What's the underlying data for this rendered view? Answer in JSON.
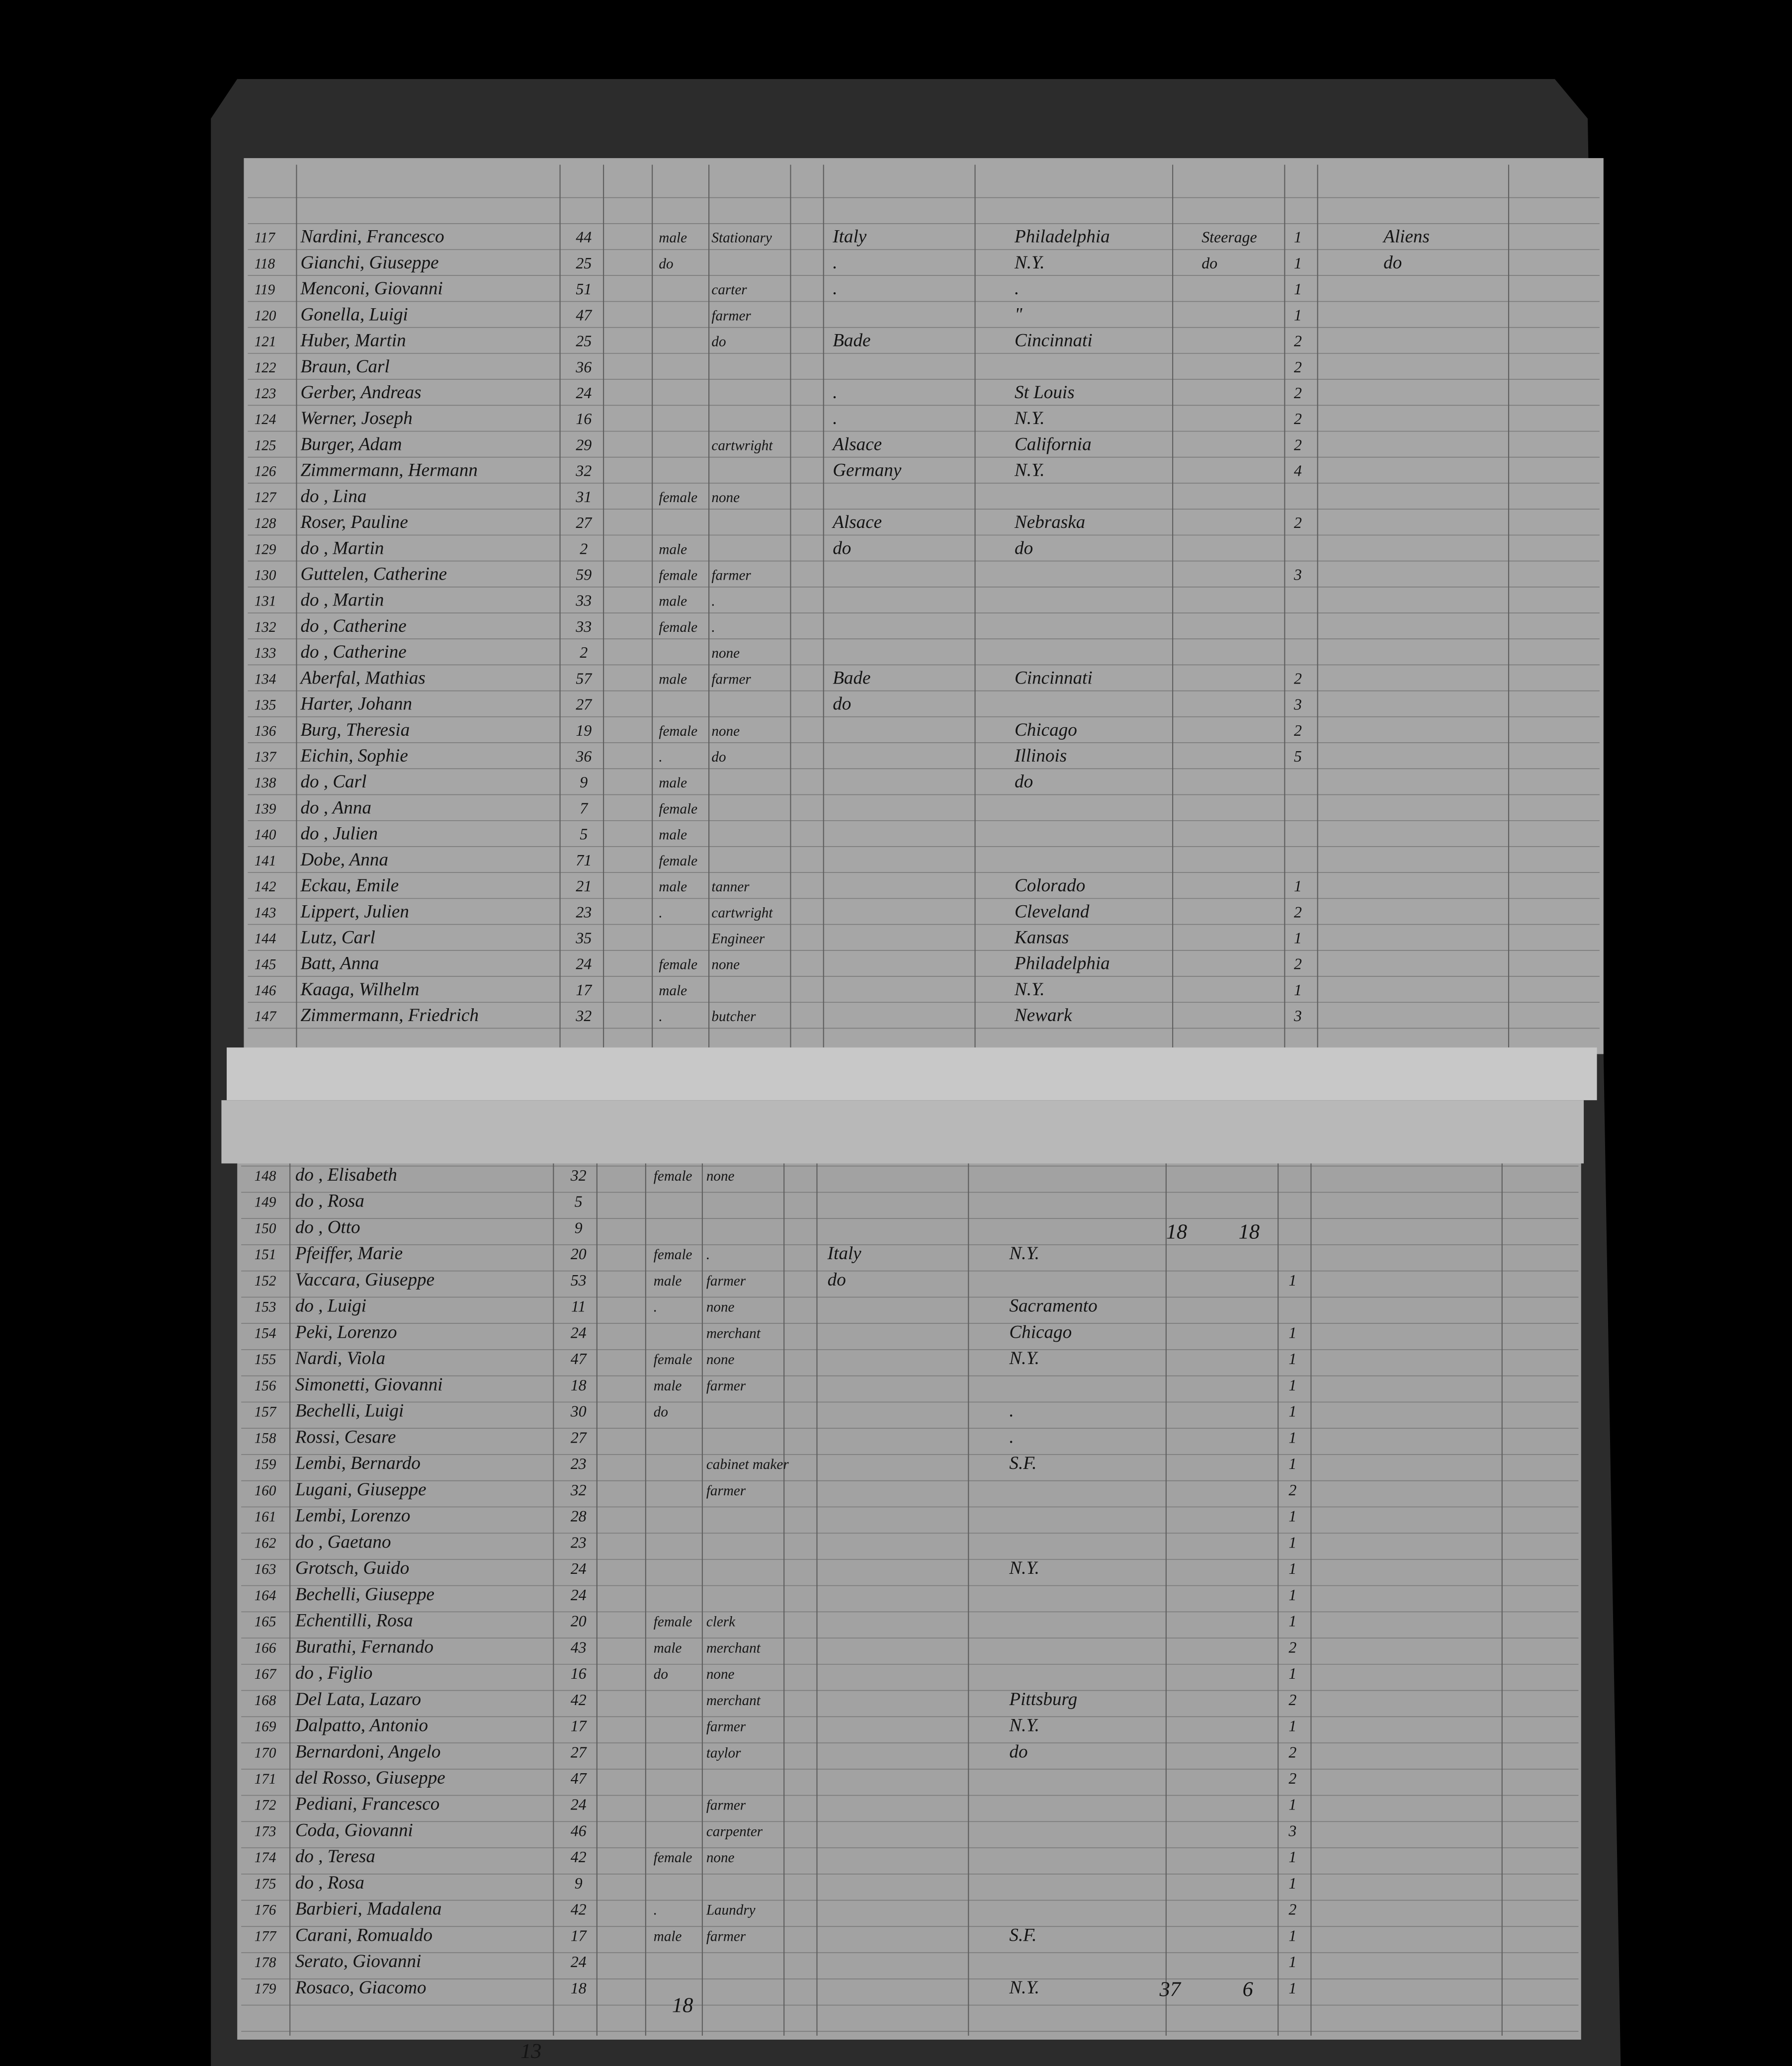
{
  "rows_top": [
    {
      "no": "117",
      "name": "Nardini, Francesco",
      "age": "44",
      "sex": "male",
      "occ": "Stationary",
      "country": "Italy",
      "dest": "Philadelphia",
      "class": "Steerage",
      "pieces": "1",
      "remark": "Aliens"
    },
    {
      "no": "118",
      "name": "Gianchi, Giuseppe",
      "age": "25",
      "sex": "do",
      "country": ".",
      "dest": "N.Y.",
      "class": "do",
      "pieces": "1",
      "remark": "do"
    },
    {
      "no": "119",
      "name": "Menconi, Giovanni",
      "age": "51",
      "occ": "carter",
      "country": ".",
      "dest": ".",
      "pieces": "1"
    },
    {
      "no": "120",
      "name": "Gonella, Luigi",
      "age": "47",
      "occ": "farmer",
      "dest": "\"",
      "pieces": "1"
    },
    {
      "no": "121",
      "name": "Huber, Martin",
      "age": "25",
      "occ": "do",
      "country": "Bade",
      "dest": "Cincinnati",
      "pieces": "2"
    },
    {
      "no": "122",
      "name": "Braun, Carl",
      "age": "36",
      "pieces": "2"
    },
    {
      "no": "123",
      "name": "Gerber, Andreas",
      "age": "24",
      "country": ".",
      "dest": "St Louis",
      "pieces": "2"
    },
    {
      "no": "124",
      "name": "Werner, Joseph",
      "age": "16",
      "country": ".",
      "dest": "N.Y.",
      "pieces": "2"
    },
    {
      "no": "125",
      "name": "Burger, Adam",
      "age": "29",
      "occ": "cartwright",
      "country": "Alsace",
      "dest": "California",
      "pieces": "2"
    },
    {
      "no": "126",
      "name": "Zimmermann, Hermann",
      "age": "32",
      "country": "Germany",
      "dest": "N.Y.",
      "pieces": "4"
    },
    {
      "no": "127",
      "name": "do , Lina",
      "age": "31",
      "sex": "female",
      "occ": "none"
    },
    {
      "no": "128",
      "name": "Roser, Pauline",
      "age": "27",
      "country": "Alsace",
      "dest": "Nebraska",
      "pieces": "2"
    },
    {
      "no": "129",
      "name": "do , Martin",
      "age": "2",
      "sex": "male",
      "country": "do",
      "dest": "do"
    },
    {
      "no": "130",
      "name": "Guttelen, Catherine",
      "age": "59",
      "sex": "female",
      "occ": "farmer",
      "pieces": "3"
    },
    {
      "no": "131",
      "name": "do , Martin",
      "age": "33",
      "sex": "male",
      "occ": "."
    },
    {
      "no": "132",
      "name": "do , Catherine",
      "age": "33",
      "sex": "female",
      "occ": "."
    },
    {
      "no": "133",
      "name": "do , Catherine",
      "age": "2",
      "occ": "none"
    },
    {
      "no": "134",
      "name": "Aberfal, Mathias",
      "age": "57",
      "sex": "male",
      "occ": "farmer",
      "country": "Bade",
      "dest": "Cincinnati",
      "pieces": "2"
    },
    {
      "no": "135",
      "name": "Harter, Johann",
      "age": "27",
      "country": "do",
      "pieces": "3"
    },
    {
      "no": "136",
      "name": "Burg, Theresia",
      "age": "19",
      "sex": "female",
      "occ": "none",
      "dest": "Chicago",
      "pieces": "2"
    },
    {
      "no": "137",
      "name": "Eichin, Sophie",
      "age": "36",
      "sex": ".",
      "occ": "do",
      "dest": "Illinois",
      "pieces": "5"
    },
    {
      "no": "138",
      "name": "do , Carl",
      "age": "9",
      "sex": "male",
      "dest": "do"
    },
    {
      "no": "139",
      "name": "do , Anna",
      "age": "7",
      "sex": "female"
    },
    {
      "no": "140",
      "name": "do , Julien",
      "age": "5",
      "sex": "male"
    },
    {
      "no": "141",
      "name": "Dobe, Anna",
      "age": "71",
      "sex": "female"
    },
    {
      "no": "142",
      "name": "Eckau, Emile",
      "age": "21",
      "sex": "male",
      "occ": "tanner",
      "dest": "Colorado",
      "pieces": "1"
    },
    {
      "no": "143",
      "name": "Lippert, Julien",
      "age": "23",
      "sex": ".",
      "occ": "cartwright",
      "dest": "Cleveland",
      "pieces": "2"
    },
    {
      "no": "144",
      "name": "Lutz, Carl",
      "age": "35",
      "occ": "Engineer",
      "dest": "Kansas",
      "pieces": "1"
    },
    {
      "no": "145",
      "name": "Batt, Anna",
      "age": "24",
      "sex": "female",
      "occ": "none",
      "dest": "Philadelphia",
      "pieces": "2"
    },
    {
      "no": "146",
      "name": "Kaaga, Wilhelm",
      "age": "17",
      "sex": "male",
      "dest": "N.Y.",
      "pieces": "1"
    },
    {
      "no": "147",
      "name": "Zimmermann, Friedrich",
      "age": "32",
      "sex": ".",
      "occ": "butcher",
      "dest": "Newark",
      "pieces": "3"
    }
  ],
  "rows_bottom": [
    {
      "no": "148",
      "name": "do , Elisabeth",
      "age": "32",
      "sex": "female",
      "occ": "none"
    },
    {
      "no": "149",
      "name": "do , Rosa",
      "age": "5"
    },
    {
      "no": "150",
      "name": "do , Otto",
      "age": "9"
    },
    {
      "no": "151",
      "name": "Pfeiffer, Marie",
      "age": "20",
      "sex": "female",
      "occ": ".",
      "country": "Italy",
      "dest": "N.Y."
    },
    {
      "no": "152",
      "name": "Vaccara, Giuseppe",
      "age": "53",
      "sex": "male",
      "occ": "farmer",
      "country": "do",
      "pieces": "1"
    },
    {
      "no": "153",
      "name": "do , Luigi",
      "age": "11",
      "sex": ".",
      "occ": "none",
      "dest": "Sacramento"
    },
    {
      "no": "154",
      "name": "Peki, Lorenzo",
      "age": "24",
      "occ": "merchant",
      "dest": "Chicago",
      "pieces": "1"
    },
    {
      "no": "155",
      "name": "Nardi, Viola",
      "age": "47",
      "sex": "female",
      "occ": "none",
      "dest": "N.Y.",
      "pieces": "1"
    },
    {
      "no": "156",
      "name": "Simonetti, Giovanni",
      "age": "18",
      "sex": "male",
      "occ": "farmer",
      "pieces": "1"
    },
    {
      "no": "157",
      "name": "Bechelli, Luigi",
      "age": "30",
      "sex": "do",
      "dest": ".",
      "pieces": "1"
    },
    {
      "no": "158",
      "name": "Rossi, Cesare",
      "age": "27",
      "dest": ".",
      "pieces": "1"
    },
    {
      "no": "159",
      "name": "Lembi, Bernardo",
      "age": "23",
      "occ": "cabinet maker",
      "dest": "S.F.",
      "pieces": "1"
    },
    {
      "no": "160",
      "name": "Lugani, Giuseppe",
      "age": "32",
      "occ": "farmer",
      "pieces": "2"
    },
    {
      "no": "161",
      "name": "Lembi, Lorenzo",
      "age": "28",
      "pieces": "1"
    },
    {
      "no": "162",
      "name": "do , Gaetano",
      "age": "23",
      "pieces": "1"
    },
    {
      "no": "163",
      "name": "Grotsch, Guido",
      "age": "24",
      "dest": "N.Y.",
      "pieces": "1"
    },
    {
      "no": "164",
      "name": "Bechelli, Giuseppe",
      "age": "24",
      "pieces": "1"
    },
    {
      "no": "165",
      "name": "Echentilli, Rosa",
      "age": "20",
      "sex": "female",
      "occ": "clerk",
      "pieces": "1"
    },
    {
      "no": "166",
      "name": "Burathi, Fernando",
      "age": "43",
      "sex": "male",
      "occ": "merchant",
      "pieces": "2"
    },
    {
      "no": "167",
      "name": "do , Figlio",
      "age": "16",
      "sex": "do",
      "occ": "none",
      "pieces": "1"
    },
    {
      "no": "168",
      "name": "Del Lata, Lazaro",
      "age": "42",
      "occ": "merchant",
      "dest": "Pittsburg",
      "pieces": "2"
    },
    {
      "no": "169",
      "name": "Dalpatto, Antonio",
      "age": "17",
      "occ": "farmer",
      "dest": "N.Y.",
      "pieces": "1"
    },
    {
      "no": "170",
      "name": "Bernardoni, Angelo",
      "age": "27",
      "occ": "taylor",
      "dest": "do",
      "pieces": "2"
    },
    {
      "no": "171",
      "name": "del Rosso, Giuseppe",
      "age": "47",
      "pieces": "2"
    },
    {
      "no": "172",
      "name": "Pediani, Francesco",
      "age": "24",
      "occ": "farmer",
      "pieces": "1"
    },
    {
      "no": "173",
      "name": "Coda, Giovanni",
      "age": "46",
      "occ": "carpenter",
      "pieces": "3"
    },
    {
      "no": "174",
      "name": "do , Teresa",
      "age": "42",
      "sex": "female",
      "occ": "none",
      "pieces": "1"
    },
    {
      "no": "175",
      "name": "do , Rosa",
      "age": "9",
      "pieces": "1"
    },
    {
      "no": "176",
      "name": "Barbieri, Madalena",
      "age": "42",
      "sex": ".",
      "occ": "Laundry",
      "pieces": "2"
    },
    {
      "no": "177",
      "name": "Carani, Romualdo",
      "age": "17",
      "sex": "male",
      "occ": "farmer",
      "dest": "S.F.",
      "pieces": "1"
    },
    {
      "no": "178",
      "name": "Serato, Giovanni",
      "age": "24",
      "pieces": "1"
    },
    {
      "no": "179",
      "name": "Rosaco, Giacomo",
      "age": "18",
      "dest": "N.Y.",
      "pieces": "1"
    }
  ],
  "marks": [
    "18",
    "18",
    "13",
    "18",
    "37",
    "6"
  ]
}
